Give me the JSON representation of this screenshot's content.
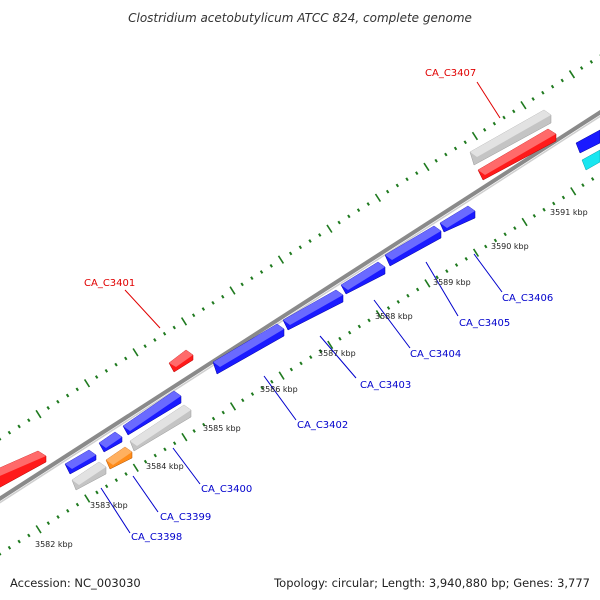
{
  "title": "Clostridium acetobutylicum ATCC 824, complete genome",
  "footer": {
    "accession": "Accession: NC_003030",
    "summary": "Topology: circular; Length: 3,940,880 bp; Genes: 3,777"
  },
  "colors": {
    "backbone": "#808080",
    "ticks": "#1f7a1f",
    "label_blue": "#0000cc",
    "label_red": "#e00000",
    "gene_blue": "#1a1aff",
    "gene_red": "#ff1a1a",
    "gene_gray": "#c8c8c8",
    "gene_orange": "#ff8c1a",
    "gene_cyan": "#19e6f0"
  },
  "kbp_labels": [
    "3582 kbp",
    "3583 kbp",
    "3584 kbp",
    "3585 kbp",
    "3586 kbp",
    "3587 kbp",
    "3588 kbp",
    "3589 kbp",
    "3590 kbp",
    "3591 kbp"
  ],
  "gene_labels": [
    {
      "text": "CA_C3398",
      "color": "blue"
    },
    {
      "text": "CA_C3399",
      "color": "blue"
    },
    {
      "text": "CA_C3400",
      "color": "blue"
    },
    {
      "text": "CA_C3401",
      "color": "red"
    },
    {
      "text": "CA_C3402",
      "color": "blue"
    },
    {
      "text": "CA_C3403",
      "color": "blue"
    },
    {
      "text": "CA_C3404",
      "color": "blue"
    },
    {
      "text": "CA_C3405",
      "color": "blue"
    },
    {
      "text": "CA_C3406",
      "color": "blue"
    },
    {
      "text": "CA_C3407",
      "color": "red"
    }
  ]
}
